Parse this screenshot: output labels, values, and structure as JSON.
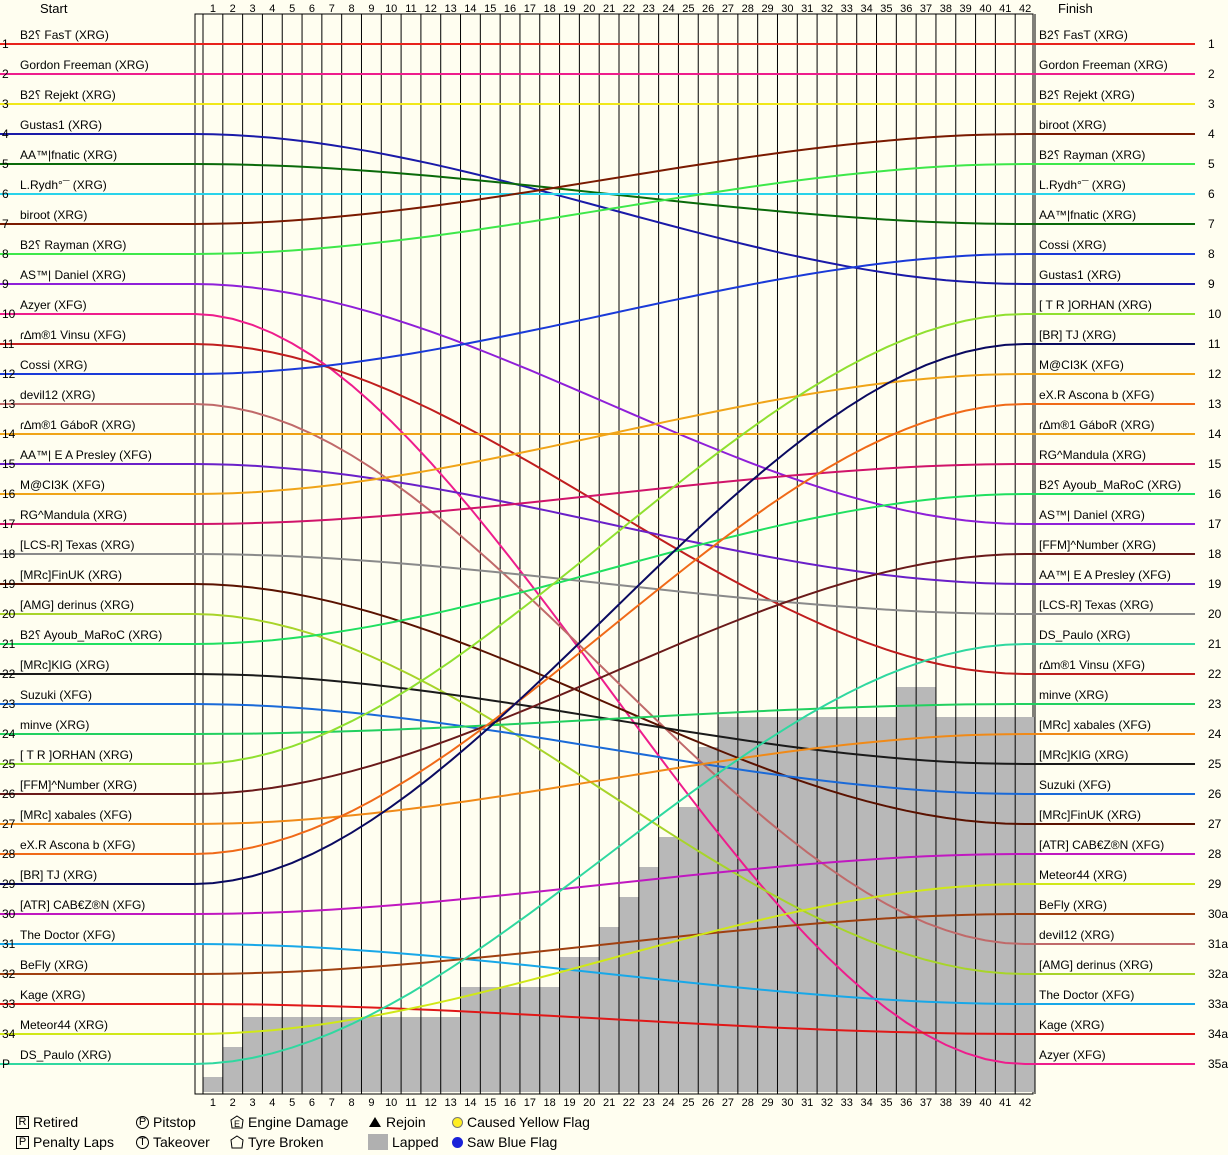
{
  "header": {
    "start": "Start",
    "finish": "Finish"
  },
  "chart_data": {
    "type": "line",
    "laps": 42,
    "x": [
      1,
      2,
      3,
      4,
      5,
      6,
      7,
      8,
      9,
      10,
      11,
      12,
      13,
      14,
      15,
      16,
      17,
      18,
      19,
      20,
      21,
      22,
      23,
      24,
      25,
      26,
      27,
      28,
      29,
      30,
      31,
      32,
      33,
      34,
      35,
      36,
      37,
      38,
      39,
      40,
      41,
      42
    ],
    "start_positions": [
      "1",
      "2",
      "3",
      "4",
      "5",
      "6",
      "7",
      "8",
      "9",
      "10",
      "11",
      "12",
      "13",
      "14",
      "15",
      "16",
      "17",
      "18",
      "19",
      "20",
      "21",
      "22",
      "23",
      "24",
      "25",
      "26",
      "27",
      "28",
      "29",
      "30",
      "31",
      "32",
      "33",
      "34",
      "P"
    ],
    "finish_positions": [
      "1",
      "2",
      "3",
      "4",
      "5",
      "6",
      "7",
      "8",
      "9",
      "10",
      "11",
      "12",
      "13",
      "14",
      "15",
      "16",
      "17",
      "18",
      "19",
      "20",
      "21",
      "22",
      "23",
      "24",
      "25",
      "26",
      "27",
      "28",
      "29",
      "30a",
      "31a",
      "32a",
      "33a",
      "34a",
      "35a"
    ],
    "start_grid": [
      {
        "name": "B2⸮ FasT (XRG)",
        "color": "#e8221c"
      },
      {
        "name": "Gordon Freeman (XRG)",
        "color": "#ee1d8c"
      },
      {
        "name": "B2⸮ Rejekt (XRG)",
        "color": "#f0e81a"
      },
      {
        "name": "Gustas1 (XRG)",
        "color": "#1a1aa8"
      },
      {
        "name": "AA™|fnatic (XRG)",
        "color": "#0a6a0a"
      },
      {
        "name": "L.Rydh°¯ (XRG)",
        "color": "#29d3ea"
      },
      {
        "name": "biroot (XRG)",
        "color": "#7a1a00"
      },
      {
        "name": "B2⸮ Rayman (XRG)",
        "color": "#3ee84a"
      },
      {
        "name": "AS™| Daniel (XRG)",
        "color": "#8f20d8"
      },
      {
        "name": "Azyer (XFG)",
        "color": "#ee1d8c"
      },
      {
        "name": "ɾ∆m®1 Vinsu (XFG)",
        "color": "#c01e1e"
      },
      {
        "name": "Cossi (XRG)",
        "color": "#1a3ad8"
      },
      {
        "name": "devil12 (XRG)",
        "color": "#c06a6a"
      },
      {
        "name": "ɾ∆m®1 GáboR (XRG)",
        "color": "#f0a418"
      },
      {
        "name": "AA™| E A Presley (XFG)",
        "color": "#6a20c8"
      },
      {
        "name": "M@CI3K (XFG)",
        "color": "#f0a418"
      },
      {
        "name": "RG^Mandula (XRG)",
        "color": "#d0146a"
      },
      {
        "name": "[LCS-R] Texas (XRG)",
        "color": "#8a8a8a"
      },
      {
        "name": "[MRc]FinUK (XRG)",
        "color": "#5a1200"
      },
      {
        "name": "[AMG] derinus (XRG)",
        "color": "#a8d42a"
      },
      {
        "name": "B2⸮ Ayoub_MaRoC (XRG)",
        "color": "#20e060"
      },
      {
        "name": "[MRc]KIG (XRG)",
        "color": "#1a1a1a"
      },
      {
        "name": "Suzuki (XFG)",
        "color": "#1a6ad8"
      },
      {
        "name": "minve (XRG)",
        "color": "#22d060"
      },
      {
        "name": "[ T R ]ORHAN (XRG)",
        "color": "#90e030"
      },
      {
        "name": "[FFM]^Number (XRG)",
        "color": "#6a1a1a"
      },
      {
        "name": "[MRc] xabales (XFG)",
        "color": "#f08a18"
      },
      {
        "name": "eX.R Ascona b (XFG)",
        "color": "#f06a18"
      },
      {
        "name": "[BR] TJ (XRG)",
        "color": "#0a0a60"
      },
      {
        "name": "[ATR] CAB€Z®N (XFG)",
        "color": "#c018c0"
      },
      {
        "name": "The Doctor (XFG)",
        "color": "#18a8e8"
      },
      {
        "name": "BeFly (XRG)",
        "color": "#a04010"
      },
      {
        "name": "Kage (XRG)",
        "color": "#e01818"
      },
      {
        "name": "Meteor44 (XRG)",
        "color": "#d0e818"
      },
      {
        "name": "DS_Paulo (XRG)",
        "color": "#30d8a0"
      }
    ],
    "finish_order": [
      {
        "name": "B2⸮ FasT (XRG)",
        "color": "#e8221c"
      },
      {
        "name": "Gordon Freeman (XRG)",
        "color": "#ee1d8c"
      },
      {
        "name": "B2⸮ Rejekt (XRG)",
        "color": "#f0e81a"
      },
      {
        "name": "biroot (XRG)",
        "color": "#7a1a00"
      },
      {
        "name": "B2⸮ Rayman (XRG)",
        "color": "#3ee84a"
      },
      {
        "name": "L.Rydh°¯ (XRG)",
        "color": "#29d3ea"
      },
      {
        "name": "AA™|fnatic (XRG)",
        "color": "#0a6a0a"
      },
      {
        "name": "Cossi (XRG)",
        "color": "#1a3ad8"
      },
      {
        "name": "Gustas1 (XRG)",
        "color": "#1a1aa8"
      },
      {
        "name": "[ T R ]ORHAN (XRG)",
        "color": "#90e030"
      },
      {
        "name": "[BR] TJ (XRG)",
        "color": "#0a0a60"
      },
      {
        "name": "M@CI3K (XFG)",
        "color": "#f0a418"
      },
      {
        "name": "eX.R Ascona b (XFG)",
        "color": "#f06a18"
      },
      {
        "name": "ɾ∆m®1 GáboR (XRG)",
        "color": "#f0a418"
      },
      {
        "name": "RG^Mandula (XRG)",
        "color": "#d0146a"
      },
      {
        "name": "B2⸮ Ayoub_MaRoC (XRG)",
        "color": "#20e060"
      },
      {
        "name": "AS™| Daniel (XRG)",
        "color": "#8f20d8"
      },
      {
        "name": "[FFM]^Number (XRG)",
        "color": "#6a1a1a"
      },
      {
        "name": "AA™| E A Presley (XFG)",
        "color": "#6a20c8"
      },
      {
        "name": "[LCS-R] Texas (XRG)",
        "color": "#8a8a8a"
      },
      {
        "name": "DS_Paulo (XRG)",
        "color": "#30d8a0"
      },
      {
        "name": "ɾ∆m®1 Vinsu (XFG)",
        "color": "#c01e1e"
      },
      {
        "name": "minve (XRG)",
        "color": "#22d060"
      },
      {
        "name": "[MRc] xabales (XFG)",
        "color": "#f08a18"
      },
      {
        "name": "[MRc]KIG (XRG)",
        "color": "#1a1a1a"
      },
      {
        "name": "Suzuki (XFG)",
        "color": "#1a6ad8"
      },
      {
        "name": "[MRc]FinUK (XRG)",
        "color": "#5a1200"
      },
      {
        "name": "[ATR] CAB€Z®N (XFG)",
        "color": "#c018c0"
      },
      {
        "name": "Meteor44 (XRG)",
        "color": "#d0e818"
      },
      {
        "name": "BeFly (XRG)",
        "color": "#a04010"
      },
      {
        "name": "devil12 (XRG)",
        "color": "#c06a6a"
      },
      {
        "name": "[AMG] derinus (XRG)",
        "color": "#a8d42a"
      },
      {
        "name": "The Doctor (XFG)",
        "color": "#18a8e8"
      },
      {
        "name": "Kage (XRG)",
        "color": "#e01818"
      },
      {
        "name": "Azyer (XFG)",
        "color": "#ee1d8c"
      }
    ],
    "lapped_boundary": [
      35,
      34,
      33,
      33,
      33,
      33,
      33,
      33,
      33,
      33,
      33,
      33,
      33,
      32,
      32,
      32,
      32,
      32,
      31,
      31,
      30,
      29,
      28,
      27,
      26,
      24,
      23,
      23,
      23,
      23,
      23,
      23,
      23,
      23,
      23,
      22,
      22,
      23,
      23,
      23,
      23,
      23
    ],
    "grid": true
  },
  "legend": [
    {
      "key": "retired",
      "icon": "R-square",
      "label": "Retired"
    },
    {
      "key": "penalty",
      "icon": "P-square",
      "label": "Penalty Laps"
    },
    {
      "key": "pitstop",
      "icon": "P-circle",
      "label": "Pitstop"
    },
    {
      "key": "takeover",
      "icon": "T-circle",
      "label": "Takeover"
    },
    {
      "key": "engine",
      "icon": "E-pentagon",
      "label": "Engine Damage"
    },
    {
      "key": "tyre",
      "icon": "tyre-pentagon",
      "label": "Tyre Broken"
    },
    {
      "key": "rejoin",
      "icon": "triangle",
      "label": "Rejoin"
    },
    {
      "key": "lapped",
      "icon": "gray-box",
      "label": "Lapped"
    },
    {
      "key": "yellow",
      "icon": "yellow-dot",
      "label": "Caused Yellow Flag"
    },
    {
      "key": "blue",
      "icon": "blue-dot",
      "label": "Saw Blue Flag"
    }
  ]
}
